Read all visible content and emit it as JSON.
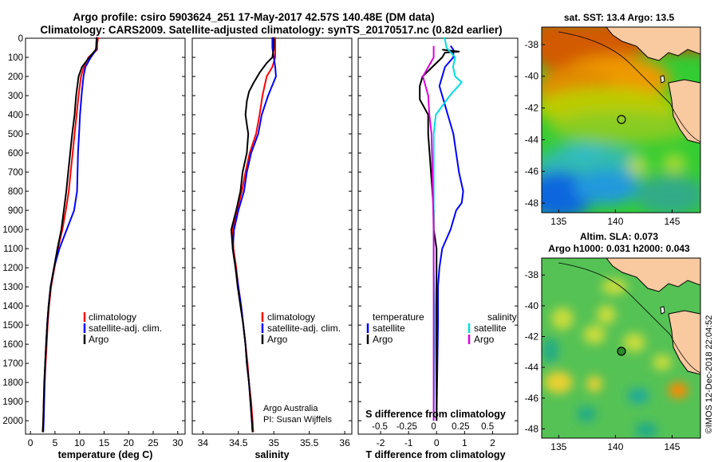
{
  "header": {
    "line1": "Argo profile: csiro 5903624_251 17-May-2017 42.57S 140.48E (DM data)",
    "line2": "Climatology: CARS2009. Satellite-adjusted climatology: synTS_20170517.nc (0.82d earlier)"
  },
  "footer": {
    "credit1": "Argo Australia",
    "credit2": "PI: Susan Wijffels",
    "stamp": "©IMOS 12-Dec-2018 22:04:52"
  },
  "colors": {
    "climatology": "#ff0000",
    "satellite": "#0000ff",
    "argo": "#000000",
    "sal_satellite": "#00dddd",
    "sal_argo": "#dd00dd"
  },
  "chart_data": [
    {
      "type": "line",
      "id": "temperature",
      "xlabel": "temperature (deg C)",
      "ylabel": "",
      "xlim": [
        -1,
        31.5
      ],
      "ylim": [
        2070,
        0
      ],
      "y_inverted": true,
      "xticks": [
        0,
        5,
        10,
        15,
        20,
        25,
        30
      ],
      "yticks": [
        0,
        100,
        200,
        300,
        400,
        500,
        600,
        700,
        800,
        900,
        1000,
        1100,
        1200,
        1300,
        1400,
        1500,
        1600,
        1700,
        1800,
        1900,
        2000
      ],
      "legend": {
        "position": "lower-center",
        "entries": [
          "climatology",
          "satellite-adj. clim.",
          "Argo"
        ]
      },
      "series": [
        {
          "name": "climatology",
          "color": "red",
          "points": [
            [
              13.8,
              -5
            ],
            [
              13.6,
              30
            ],
            [
              13.6,
              60
            ],
            [
              11.8,
              100
            ],
            [
              10.9,
              150
            ],
            [
              10.3,
              200
            ],
            [
              9.8,
              300
            ],
            [
              9.4,
              400
            ],
            [
              9.0,
              500
            ],
            [
              8.6,
              600
            ],
            [
              8.2,
              700
            ],
            [
              7.8,
              800
            ],
            [
              7.2,
              900
            ],
            [
              6.5,
              1000
            ],
            [
              5.6,
              1100
            ],
            [
              4.9,
              1200
            ],
            [
              4.2,
              1300
            ],
            [
              3.8,
              1400
            ],
            [
              3.5,
              1500
            ],
            [
              3.3,
              1600
            ],
            [
              3.1,
              1700
            ],
            [
              2.9,
              1800
            ],
            [
              2.7,
              1900
            ],
            [
              2.6,
              2000
            ],
            [
              2.5,
              2060
            ]
          ]
        },
        {
          "name": "satellite-adj. clim.",
          "color": "blue",
          "points": [
            [
              13.5,
              -5
            ],
            [
              13.4,
              30
            ],
            [
              13.4,
              60
            ],
            [
              12.3,
              100
            ],
            [
              11.2,
              150
            ],
            [
              10.8,
              200
            ],
            [
              10.4,
              300
            ],
            [
              10.1,
              400
            ],
            [
              9.9,
              500
            ],
            [
              9.7,
              600
            ],
            [
              9.6,
              700
            ],
            [
              9.5,
              800
            ],
            [
              8.9,
              900
            ],
            [
              7.4,
              1000
            ],
            [
              5.9,
              1100
            ],
            [
              4.8,
              1200
            ],
            [
              4.1,
              1300
            ],
            [
              3.7,
              1400
            ],
            [
              3.4,
              1500
            ],
            [
              3.2,
              1600
            ],
            [
              3.0,
              1700
            ],
            [
              2.9,
              1800
            ],
            [
              2.8,
              1900
            ],
            [
              2.7,
              2000
            ],
            [
              2.6,
              2060
            ]
          ]
        },
        {
          "name": "Argo",
          "color": "black",
          "points": [
            [
              13.5,
              -5
            ],
            [
              13.5,
              30
            ],
            [
              13.3,
              60
            ],
            [
              12.0,
              100
            ],
            [
              10.5,
              150
            ],
            [
              9.8,
              200
            ],
            [
              9.3,
              300
            ],
            [
              9.0,
              400
            ],
            [
              8.5,
              500
            ],
            [
              8.1,
              600
            ],
            [
              7.7,
              700
            ],
            [
              7.3,
              800
            ],
            [
              6.8,
              900
            ],
            [
              6.3,
              1000
            ],
            [
              5.5,
              1100
            ],
            [
              4.8,
              1200
            ],
            [
              4.1,
              1300
            ],
            [
              3.7,
              1400
            ],
            [
              3.4,
              1500
            ],
            [
              3.2,
              1600
            ],
            [
              3.0,
              1700
            ],
            [
              2.8,
              1800
            ],
            [
              2.7,
              1900
            ],
            [
              2.6,
              2000
            ],
            [
              2.5,
              2060
            ]
          ]
        }
      ]
    },
    {
      "type": "line",
      "id": "salinity",
      "xlabel": "salinity",
      "ylabel": "",
      "xlim": [
        33.85,
        36.1
      ],
      "ylim": [
        2070,
        0
      ],
      "y_inverted": true,
      "xticks": [
        34,
        34.5,
        35,
        35.5,
        36
      ],
      "xticklabels": [
        "34",
        "34.5",
        "35",
        "35.5",
        "36"
      ],
      "legend": {
        "position": "lower-center",
        "entries": [
          "climatology",
          "satellite-adj. clim.",
          "Argo"
        ]
      },
      "series": [
        {
          "name": "climatology",
          "color": "red",
          "points": [
            [
              35.02,
              -5
            ],
            [
              35.02,
              50
            ],
            [
              35.02,
              100
            ],
            [
              34.98,
              150
            ],
            [
              34.9,
              200
            ],
            [
              34.84,
              300
            ],
            [
              34.8,
              400
            ],
            [
              34.75,
              500
            ],
            [
              34.66,
              600
            ],
            [
              34.6,
              700
            ],
            [
              34.55,
              800
            ],
            [
              34.48,
              900
            ],
            [
              34.42,
              1000
            ],
            [
              34.43,
              1100
            ],
            [
              34.47,
              1200
            ],
            [
              34.5,
              1300
            ],
            [
              34.54,
              1400
            ],
            [
              34.57,
              1500
            ],
            [
              34.6,
              1600
            ],
            [
              34.63,
              1700
            ],
            [
              34.65,
              1800
            ],
            [
              34.68,
              1900
            ],
            [
              34.7,
              2000
            ],
            [
              34.71,
              2060
            ]
          ]
        },
        {
          "name": "satellite-adj. clim.",
          "color": "blue",
          "points": [
            [
              34.98,
              -5
            ],
            [
              34.98,
              50
            ],
            [
              35.0,
              100
            ],
            [
              35.02,
              150
            ],
            [
              35.03,
              200
            ],
            [
              34.92,
              300
            ],
            [
              34.83,
              400
            ],
            [
              34.78,
              500
            ],
            [
              34.68,
              600
            ],
            [
              34.62,
              700
            ],
            [
              34.58,
              800
            ],
            [
              34.5,
              900
            ],
            [
              34.44,
              1000
            ],
            [
              34.42,
              1100
            ],
            [
              34.46,
              1200
            ],
            [
              34.5,
              1300
            ],
            [
              34.54,
              1400
            ],
            [
              34.57,
              1500
            ],
            [
              34.6,
              1600
            ],
            [
              34.62,
              1700
            ],
            [
              34.65,
              1800
            ],
            [
              34.67,
              1900
            ],
            [
              34.69,
              2000
            ],
            [
              34.7,
              2060
            ]
          ]
        },
        {
          "name": "Argo",
          "color": "black",
          "points": [
            [
              35.0,
              -5
            ],
            [
              35.0,
              50
            ],
            [
              34.98,
              100
            ],
            [
              34.9,
              130
            ],
            [
              34.8,
              180
            ],
            [
              34.72,
              230
            ],
            [
              34.65,
              280
            ],
            [
              34.62,
              330
            ],
            [
              34.6,
              400
            ],
            [
              34.62,
              450
            ],
            [
              34.64,
              500
            ],
            [
              34.62,
              600
            ],
            [
              34.56,
              700
            ],
            [
              34.53,
              800
            ],
            [
              34.47,
              900
            ],
            [
              34.4,
              1000
            ],
            [
              34.42,
              1100
            ],
            [
              34.46,
              1200
            ],
            [
              34.49,
              1300
            ],
            [
              34.53,
              1400
            ],
            [
              34.57,
              1500
            ],
            [
              34.6,
              1600
            ],
            [
              34.62,
              1700
            ],
            [
              34.65,
              1800
            ],
            [
              34.67,
              1900
            ],
            [
              34.69,
              2000
            ],
            [
              34.7,
              2060
            ]
          ]
        }
      ]
    },
    {
      "type": "line",
      "id": "difference",
      "xlabel": "T difference from climatology",
      "xlabel2": "S difference from climatology",
      "xlim": [
        -2.8,
        2.9
      ],
      "xticks": [
        -2,
        -1,
        0,
        1,
        2
      ],
      "xticks2": [
        -0.5,
        -0.25,
        0,
        0.25,
        0.5
      ],
      "xticklabels2": [
        "-0.5",
        "-0.25",
        "0",
        "0.25",
        "0.5"
      ],
      "ylim": [
        2070,
        0
      ],
      "y_inverted": true,
      "legend": {
        "position": "lower",
        "temperature_title": "temperature",
        "salinity_title": "salinity",
        "entries_left": [
          "satellite",
          "Argo"
        ],
        "entries_right": [
          "satellite",
          "Argo"
        ]
      },
      "series": [
        {
          "name": "temperature satellite",
          "color": "blue",
          "points": [
            [
              0.5,
              40
            ],
            [
              0.6,
              60
            ],
            [
              0.6,
              100
            ],
            [
              0.3,
              150
            ],
            [
              0.1,
              250
            ],
            [
              0.2,
              300
            ],
            [
              0.4,
              400
            ],
            [
              0.6,
              500
            ],
            [
              0.7,
              600
            ],
            [
              0.8,
              700
            ],
            [
              0.95,
              800
            ],
            [
              0.9,
              860
            ],
            [
              0.7,
              900
            ],
            [
              0.5,
              1000
            ],
            [
              0.2,
              1100
            ],
            [
              0.1,
              1200
            ],
            [
              0.05,
              1300
            ],
            [
              0.05,
              1500
            ],
            [
              0.0,
              2000
            ]
          ]
        },
        {
          "name": "temperature Argo",
          "color": "black",
          "points": [
            [
              0.2,
              60
            ],
            [
              0.8,
              70
            ],
            [
              0.3,
              75
            ],
            [
              0.2,
              100
            ],
            [
              -0.5,
              200
            ],
            [
              -0.6,
              250
            ],
            [
              -0.6,
              320
            ],
            [
              -0.3,
              400
            ],
            [
              -0.3,
              500
            ],
            [
              -0.2,
              700
            ],
            [
              -0.1,
              900
            ],
            [
              -0.1,
              1000
            ],
            [
              0.0,
              1100
            ],
            [
              0.0,
              2000
            ]
          ]
        },
        {
          "name": "salinity satellite",
          "color": "cyan",
          "points": [
            [
              0.1,
              -5
            ],
            [
              0.12,
              50
            ],
            [
              0.2,
              100
            ],
            [
              0.18,
              150
            ],
            [
              0.2,
              200
            ],
            [
              0.26,
              230
            ],
            [
              0.15,
              300
            ],
            [
              0.02,
              400
            ],
            [
              0.0,
              500
            ],
            [
              0.0,
              600
            ],
            [
              0.0,
              1000
            ],
            [
              0.0,
              1200
            ],
            [
              0.01,
              1400
            ],
            [
              0.01,
              1600
            ],
            [
              0.0,
              2000
            ]
          ]
        },
        {
          "name": "salinity Argo",
          "color": "magenta",
          "points": [
            [
              0.0,
              40
            ],
            [
              0.0,
              100
            ],
            [
              -0.1,
              200
            ],
            [
              -0.05,
              300
            ],
            [
              -0.04,
              400
            ],
            [
              -0.02,
              500
            ],
            [
              0.0,
              1000
            ],
            [
              0.0,
              2000
            ]
          ]
        }
      ]
    },
    {
      "type": "heatmap",
      "id": "sst-map",
      "title": "sat. SST: 13.4  Argo: 13.5",
      "xlim": [
        133.5,
        147.5
      ],
      "ylim": [
        -48.6,
        -36.9
      ],
      "xticks": [
        135,
        140,
        145
      ],
      "yticks": [
        -38,
        -40,
        -42,
        -44,
        -46,
        -48
      ],
      "marker": {
        "lon": 140.48,
        "lat": -42.57
      }
    },
    {
      "type": "heatmap",
      "id": "sla-map",
      "title": "Altim. SLA: 0.073",
      "title2": "Argo h1000: 0.031  h2000: 0.043",
      "xlim": [
        133.5,
        147.5
      ],
      "ylim": [
        -48.6,
        -36.9
      ],
      "xticks": [
        135,
        140,
        145
      ],
      "yticks": [
        -38,
        -40,
        -42,
        -44,
        -46,
        -48
      ],
      "marker": {
        "lon": 140.48,
        "lat": -42.57
      }
    }
  ]
}
